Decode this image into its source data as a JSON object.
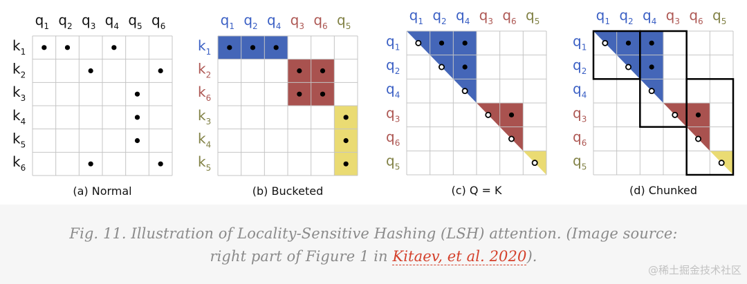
{
  "colors": {
    "blue": "#4466b8",
    "red": "#a9524f",
    "yellow": "#eadb73",
    "q_blue_text": "#3a5fc4",
    "q_red_text": "#ad5753",
    "q_olive_text": "#818145",
    "grid": "#c4c4c4",
    "caption": "#8a8a8a",
    "link": "#d4402b"
  },
  "panels": [
    {
      "title": "(a) Normal",
      "cols": [
        {
          "b": "q",
          "s": "1",
          "c": "black"
        },
        {
          "b": "q",
          "s": "2",
          "c": "black"
        },
        {
          "b": "q",
          "s": "3",
          "c": "black"
        },
        {
          "b": "q",
          "s": "4",
          "c": "black"
        },
        {
          "b": "q",
          "s": "5",
          "c": "black"
        },
        {
          "b": "q",
          "s": "6",
          "c": "black"
        }
      ],
      "rows": [
        {
          "b": "k",
          "s": "1",
          "c": "black"
        },
        {
          "b": "k",
          "s": "2",
          "c": "black"
        },
        {
          "b": "k",
          "s": "3",
          "c": "black"
        },
        {
          "b": "k",
          "s": "4",
          "c": "black"
        },
        {
          "b": "k",
          "s": "5",
          "c": "black"
        },
        {
          "b": "k",
          "s": "6",
          "c": "black"
        }
      ],
      "fills": [],
      "dots": [
        [
          0,
          0,
          "f"
        ],
        [
          0,
          1,
          "f"
        ],
        [
          0,
          3,
          "f"
        ],
        [
          1,
          2,
          "f"
        ],
        [
          1,
          5,
          "f"
        ],
        [
          2,
          4,
          "f"
        ],
        [
          3,
          4,
          "f"
        ],
        [
          4,
          4,
          "f"
        ],
        [
          5,
          2,
          "f"
        ],
        [
          5,
          5,
          "f"
        ]
      ],
      "boxes": []
    },
    {
      "title": "(b) Bucketed",
      "cols": [
        {
          "b": "q",
          "s": "1",
          "c": "blue"
        },
        {
          "b": "q",
          "s": "2",
          "c": "blue"
        },
        {
          "b": "q",
          "s": "4",
          "c": "blue"
        },
        {
          "b": "q",
          "s": "3",
          "c": "red"
        },
        {
          "b": "q",
          "s": "6",
          "c": "red"
        },
        {
          "b": "q",
          "s": "5",
          "c": "olive"
        }
      ],
      "rows": [
        {
          "b": "k",
          "s": "1",
          "c": "blue"
        },
        {
          "b": "k",
          "s": "2",
          "c": "red"
        },
        {
          "b": "k",
          "s": "6",
          "c": "red"
        },
        {
          "b": "k",
          "s": "3",
          "c": "olive"
        },
        {
          "b": "k",
          "s": "4",
          "c": "olive"
        },
        {
          "b": "k",
          "s": "5",
          "c": "olive"
        }
      ],
      "fills": [
        {
          "kind": "rect",
          "r0": 0,
          "c0": 0,
          "r1": 0,
          "c1": 2,
          "color": "blue"
        },
        {
          "kind": "rect",
          "r0": 1,
          "c0": 3,
          "r1": 2,
          "c1": 4,
          "color": "red"
        },
        {
          "kind": "rect",
          "r0": 3,
          "c0": 5,
          "r1": 5,
          "c1": 5,
          "color": "yellow"
        }
      ],
      "dots": [
        [
          0,
          0,
          "f"
        ],
        [
          0,
          1,
          "f"
        ],
        [
          0,
          2,
          "f"
        ],
        [
          1,
          3,
          "f"
        ],
        [
          1,
          4,
          "f"
        ],
        [
          2,
          3,
          "f"
        ],
        [
          2,
          4,
          "f"
        ],
        [
          3,
          5,
          "f"
        ],
        [
          4,
          5,
          "f"
        ],
        [
          5,
          5,
          "f"
        ]
      ],
      "boxes": []
    },
    {
      "title": "(c) Q = K",
      "cols": [
        {
          "b": "q",
          "s": "1",
          "c": "blue"
        },
        {
          "b": "q",
          "s": "2",
          "c": "blue"
        },
        {
          "b": "q",
          "s": "4",
          "c": "blue"
        },
        {
          "b": "q",
          "s": "3",
          "c": "red"
        },
        {
          "b": "q",
          "s": "6",
          "c": "red"
        },
        {
          "b": "q",
          "s": "5",
          "c": "olive"
        }
      ],
      "rows": [
        {
          "b": "q",
          "s": "1",
          "c": "blue"
        },
        {
          "b": "q",
          "s": "2",
          "c": "blue"
        },
        {
          "b": "q",
          "s": "4",
          "c": "blue"
        },
        {
          "b": "q",
          "s": "3",
          "c": "red"
        },
        {
          "b": "q",
          "s": "6",
          "c": "red"
        },
        {
          "b": "q",
          "s": "5",
          "c": "olive"
        }
      ],
      "fills": [
        {
          "kind": "tri",
          "start": 0,
          "size": 3,
          "color": "blue"
        },
        {
          "kind": "tri",
          "start": 3,
          "size": 2,
          "color": "red"
        },
        {
          "kind": "tri",
          "start": 5,
          "size": 1,
          "color": "yellow"
        }
      ],
      "dots": [
        [
          0,
          0,
          "o"
        ],
        [
          0,
          1,
          "f"
        ],
        [
          0,
          2,
          "f"
        ],
        [
          1,
          1,
          "o"
        ],
        [
          1,
          2,
          "f"
        ],
        [
          2,
          2,
          "o"
        ],
        [
          3,
          3,
          "o"
        ],
        [
          3,
          4,
          "f"
        ],
        [
          4,
          4,
          "o"
        ],
        [
          5,
          5,
          "o"
        ]
      ],
      "boxes": []
    },
    {
      "title": "(d) Chunked",
      "cols": [
        {
          "b": "q",
          "s": "1",
          "c": "blue"
        },
        {
          "b": "q",
          "s": "2",
          "c": "blue"
        },
        {
          "b": "q",
          "s": "4",
          "c": "blue"
        },
        {
          "b": "q",
          "s": "3",
          "c": "red"
        },
        {
          "b": "q",
          "s": "6",
          "c": "red"
        },
        {
          "b": "q",
          "s": "5",
          "c": "olive"
        }
      ],
      "rows": [
        {
          "b": "q",
          "s": "1",
          "c": "blue"
        },
        {
          "b": "q",
          "s": "2",
          "c": "blue"
        },
        {
          "b": "q",
          "s": "4",
          "c": "blue"
        },
        {
          "b": "q",
          "s": "3",
          "c": "red"
        },
        {
          "b": "q",
          "s": "6",
          "c": "red"
        },
        {
          "b": "q",
          "s": "5",
          "c": "olive"
        }
      ],
      "fills": [
        {
          "kind": "tri",
          "start": 0,
          "size": 3,
          "color": "blue"
        },
        {
          "kind": "tri",
          "start": 3,
          "size": 2,
          "color": "red"
        },
        {
          "kind": "tri",
          "start": 5,
          "size": 1,
          "color": "yellow"
        }
      ],
      "dots": [
        [
          0,
          0,
          "o"
        ],
        [
          0,
          1,
          "f"
        ],
        [
          0,
          2,
          "f"
        ],
        [
          1,
          1,
          "o"
        ],
        [
          1,
          2,
          "f"
        ],
        [
          2,
          2,
          "o"
        ],
        [
          3,
          3,
          "o"
        ],
        [
          3,
          4,
          "f"
        ],
        [
          4,
          4,
          "o"
        ],
        [
          5,
          5,
          "o"
        ]
      ],
      "boxes": [
        {
          "r0": 0,
          "c0": 0,
          "r1": 1,
          "c1": 1
        },
        {
          "r0": 0,
          "c0": 2,
          "r1": 3,
          "c1": 3
        },
        {
          "r0": 2,
          "c0": 4,
          "r1": 5,
          "c1": 5
        }
      ]
    }
  ],
  "caption": {
    "line1": "Fig. 11. Illustration of Locality-Sensitive Hashing (LSH) attention. (Image source:",
    "line2_prefix": "right part of Figure 1 in ",
    "link_text": "Kitaev, et al. 2020",
    "line2_suffix": ")."
  },
  "watermark": "@稀土掘金技术社区"
}
